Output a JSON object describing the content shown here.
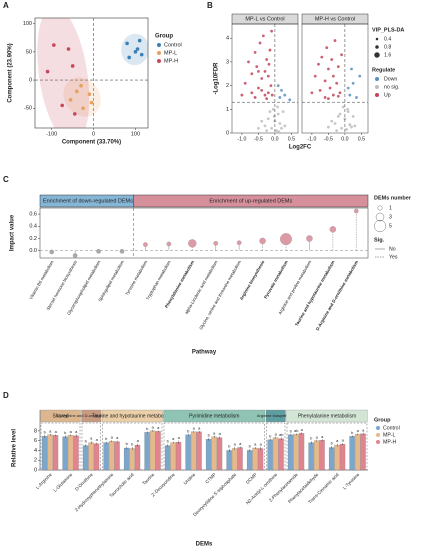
{
  "chart_data": [
    {
      "panel": "A",
      "type": "scatter",
      "x_label": "Component (33.70%)",
      "y_label": "Component (23.90%)",
      "xlim": [
        -140,
        130
      ],
      "ylim": [
        -85,
        110
      ],
      "xticks": [
        -100,
        0,
        100
      ],
      "yticks": [
        -50,
        0,
        50,
        100
      ],
      "vline": 0,
      "hline": 0,
      "legend_title": "Group",
      "series": [
        {
          "name": "Control",
          "color": "#3a7fb5",
          "x": [
            80,
            110,
            115,
            100,
            85,
            105
          ],
          "y": [
            65,
            70,
            45,
            50,
            40,
            55
          ]
        },
        {
          "name": "MP-L",
          "color": "#e8a05c",
          "x": [
            -10,
            -30,
            -5,
            -25,
            -55,
            -40
          ],
          "y": [
            -25,
            -10,
            -40,
            -50,
            -35,
            -20
          ]
        },
        {
          "name": "MP-H",
          "color": "#c8485a",
          "x": [
            -95,
            -60,
            -110,
            -50,
            -75,
            -45
          ],
          "y": [
            62,
            55,
            15,
            25,
            -45,
            -60
          ]
        }
      ]
    },
    {
      "panel": "B",
      "type": "volcano",
      "x_label": "Log2FC",
      "y_label": "-Log10FDR",
      "xlim": [
        -1.3,
        0.7
      ],
      "ylim": [
        0,
        4.6
      ],
      "xticks": [
        {
          "value": -1,
          "label": "-1.0"
        },
        -0.5,
        {
          "value": 0,
          "label": "0.0"
        },
        0.5
      ],
      "yticks": [
        0,
        1,
        2,
        3,
        4
      ],
      "vline": 0,
      "hline": 1.3,
      "size_title": "VIP_PLS-DA",
      "size_legend": [
        0.4,
        0.8,
        1.6
      ],
      "color_title": "Regulate",
      "facets": [
        {
          "title": "MP-L vs Control",
          "series": [
            {
              "name": "Down",
              "color": "#5a8fc0",
              "x": [
                0.15,
                0.2,
                0.3,
                0.1,
                0.45
              ],
              "y": [
                1.5,
                1.8,
                1.6,
                2.0,
                1.4
              ]
            },
            {
              "name": "no sig.",
              "color": "#bdbdbd",
              "x": [
                -0.3,
                -0.2,
                -0.1,
                0,
                0.1,
                0.05,
                -0.05,
                0.15,
                -0.15,
                0.2,
                -0.25,
                0.08,
                -0.4,
                0.3,
                -0.02,
                0.12,
                -0.5,
                0.25
              ],
              "y": [
                0.3,
                0.6,
                0.2,
                0.5,
                0.8,
                0.1,
                1.0,
                0.4,
                0.9,
                0.2,
                0.1,
                1.1,
                0.5,
                0.3,
                0.7,
                0.05,
                0.2,
                0.9
              ]
            },
            {
              "name": "Up",
              "color": "#c4455a",
              "x": [
                -0.9,
                -0.8,
                -0.7,
                -0.6,
                -0.55,
                -0.5,
                -0.45,
                -0.4,
                -0.35,
                -0.3,
                -0.25,
                -0.2,
                -0.18,
                -0.15,
                -0.12,
                -0.1,
                -0.08,
                -0.6,
                -0.3,
                -0.4,
                -1.0,
                -0.7,
                -0.2,
                -0.5,
                -0.25
              ],
              "y": [
                2.1,
                3.0,
                2.5,
                3.4,
                2.8,
                1.9,
                3.8,
                2.3,
                4.1,
                2.6,
                3.1,
                1.7,
                2.9,
                3.5,
                2.0,
                4.3,
                1.6,
                1.5,
                1.6,
                1.8,
                1.6,
                1.7,
                2.4,
                2.6,
                1.45
              ]
            }
          ]
        },
        {
          "title": "MP-H vs Control",
          "series": [
            {
              "name": "Down",
              "color": "#5a8fc0",
              "x": [
                0.15,
                0.25,
                0.35,
                0.1,
                0.45,
                0.2
              ],
              "y": [
                1.6,
                2.1,
                1.5,
                1.9,
                2.4,
                2.7
              ]
            },
            {
              "name": "no sig.",
              "color": "#bdbdbd",
              "x": [
                -0.3,
                -0.2,
                -0.1,
                0,
                0.1,
                0.05,
                -0.05,
                0.15,
                -0.15,
                0.2,
                -0.25,
                0.08,
                -0.4,
                0.3,
                -0.5,
                0.25
              ],
              "y": [
                0.4,
                0.7,
                0.2,
                0.6,
                0.9,
                0.15,
                1.1,
                0.35,
                0.8,
                0.25,
                0.1,
                1.0,
                0.5,
                0.3,
                0.25,
                0.7
              ]
            },
            {
              "name": "Up",
              "color": "#c4455a",
              "x": [
                -0.9,
                -0.8,
                -0.75,
                -0.7,
                -0.6,
                -0.55,
                -0.5,
                -0.45,
                -0.4,
                -0.35,
                -0.3,
                -0.25,
                -0.2,
                -0.15,
                -0.1,
                -0.6,
                -0.35,
                -1.0,
                -0.5,
                -0.2
              ],
              "y": [
                2.4,
                2.9,
                1.8,
                3.2,
                2.2,
                3.6,
                2.7,
                1.9,
                3.1,
                2.4,
                3.9,
                2.1,
                2.8,
                1.7,
                3.3,
                1.5,
                1.6,
                1.7,
                1.45,
                1.55
              ]
            }
          ]
        }
      ]
    },
    {
      "panel": "C",
      "type": "lollipop",
      "x_label": "Pathway",
      "y_label": "Impact value",
      "ylim": [
        -0.12,
        0.7
      ],
      "yticks": [
        {
          "value": 0,
          "label": "0.0"
        },
        0.2,
        0.4,
        0.6
      ],
      "hline": 0,
      "size_title": "DEMs number",
      "size_legend": [
        1,
        3,
        5
      ],
      "sig_title": "Sig.",
      "sig_levels": [
        "No",
        "Yes"
      ],
      "groups": [
        {
          "name": "Enrichment of down-regulated DEMs",
          "color": "#86b6d6",
          "marker_color": "#a8a8a8",
          "categories": [
            "Vitamin B6 metabolism",
            "Steroid hormone biosynthesis",
            "Glycerophospholipid metabolism",
            "Sphingolipid metabolism"
          ],
          "values": [
            -0.02,
            -0.08,
            -0.01,
            -0.01
          ],
          "dems": [
            1,
            1,
            1,
            1
          ],
          "sig": [
            "No",
            "No",
            "No",
            "No"
          ]
        },
        {
          "name": "Enrichment of up-regulated DEMs",
          "color": "#d6909c",
          "marker_color": "#dc9aa6",
          "categories": [
            "Tyrosine metabolism",
            "Tryptophan metabolism",
            "Phenylalanine metabolism",
            "alpha-Linolenic acid metabolism",
            "Glycine, serine and threonine metabolism",
            "Arginine biosynthesis",
            "Pyruvate metabolism",
            "Arginine and proline metabolism",
            "Taurine and hypotaurine metabolism",
            "D-Arginine and D-ornithine metabolism"
          ],
          "values": [
            0.1,
            0.11,
            0.12,
            0.12,
            0.13,
            0.16,
            0.19,
            0.2,
            0.35,
            0.65
          ],
          "dems": [
            1,
            1,
            3,
            1,
            1,
            2,
            5,
            2,
            2,
            1
          ],
          "sig": [
            "No",
            "No",
            "Yes",
            "No",
            "No",
            "Yes",
            "Yes",
            "No",
            "Yes",
            "Yes"
          ]
        }
      ]
    },
    {
      "panel": "D",
      "type": "bar",
      "x_label": "DEMs",
      "y_label": "Relative level",
      "ylim": [
        0,
        9
      ],
      "yticks": [
        0,
        2,
        4,
        6,
        8
      ],
      "legend_title": "Group",
      "groups": [
        {
          "name": "Shared",
          "color": "#dcb68e",
          "categories": [
            "L-Arginine",
            "L-Glutamine"
          ]
        },
        {
          "name": "D-Arginine and D-ornithine metabolism",
          "color": "#c79a82",
          "categories": [
            "D-Ornithine"
          ]
        },
        {
          "name": "Taurine and hypotaurine metabolism",
          "color": "#ebcfa8",
          "categories": [
            "2-Hydroxyphenethylamine",
            "Taurocholic acid",
            "Taurine"
          ]
        },
        {
          "name": "Pyrimidine metabolism",
          "color": "#8fc3b3",
          "categories": [
            "2'-Deoxyuridine",
            "Uridine",
            "CTMP",
            "Deoxycytidine 5'-triphosphate",
            "DCMP"
          ]
        },
        {
          "name": "Arginine biosynthesis",
          "color": "#5f9ea0",
          "categories": [
            "N2-Acetyl-L-ornithine"
          ]
        },
        {
          "name": "Phenylalanine metabolism",
          "color": "#d3e6d6",
          "categories": [
            "2-Phenylacetamide",
            "Phenylacetaldehyde",
            "Trans-Cinnamic acid",
            "L-Tyrosine"
          ]
        }
      ],
      "series": [
        {
          "name": "Control",
          "color": "#7ba7cc",
          "values": [
            6.9,
            6.8,
            5.0,
            5.6,
            4.5,
            7.7,
            5.0,
            7.2,
            6.3,
            4.0,
            4.0,
            6.2,
            7.2,
            5.6,
            4.6,
            6.9
          ],
          "errors": [
            0.3,
            0.3,
            0.3,
            0.2,
            0.3,
            0.2,
            0.3,
            0.2,
            0.3,
            0.3,
            0.3,
            0.2,
            0.2,
            0.3,
            0.3,
            0.2
          ],
          "letters": [
            "b",
            "b",
            "b",
            "b",
            "b",
            "b",
            "b",
            "b",
            "b",
            "b",
            "b",
            "b",
            "b",
            "b",
            "b",
            "b"
          ]
        },
        {
          "name": "MP-L",
          "color": "#e6b98c",
          "values": [
            7.2,
            7.1,
            5.6,
            5.9,
            4.4,
            8.0,
            5.6,
            7.8,
            6.8,
            4.4,
            4.5,
            6.6,
            7.3,
            6.0,
            5.1,
            7.3
          ],
          "errors": [
            0.2,
            0.2,
            0.3,
            0.2,
            0.3,
            0.2,
            0.2,
            0.2,
            0.2,
            0.3,
            0.2,
            0.2,
            0.2,
            0.2,
            0.3,
            0.2
          ],
          "letters": [
            "a",
            "a",
            "a",
            "a",
            "b",
            "a",
            "a",
            "a",
            "a",
            "a",
            "a",
            "a",
            "ab",
            "a",
            "a",
            "a"
          ]
        },
        {
          "name": "MP-H",
          "color": "#e0848f",
          "values": [
            7.1,
            7.0,
            5.4,
            5.8,
            5.1,
            7.9,
            5.7,
            7.8,
            6.6,
            4.6,
            4.4,
            6.4,
            7.5,
            6.1,
            5.3,
            7.4
          ],
          "errors": [
            0.2,
            0.3,
            0.2,
            0.2,
            0.3,
            0.2,
            0.3,
            0.2,
            0.3,
            0.2,
            0.3,
            0.3,
            0.2,
            0.2,
            0.2,
            0.2
          ],
          "letters": [
            "a",
            "a",
            "a",
            "a",
            "a",
            "a",
            "a",
            "a",
            "a",
            "a",
            "a",
            "ab",
            "a",
            "a",
            "a",
            "a"
          ]
        }
      ]
    }
  ]
}
